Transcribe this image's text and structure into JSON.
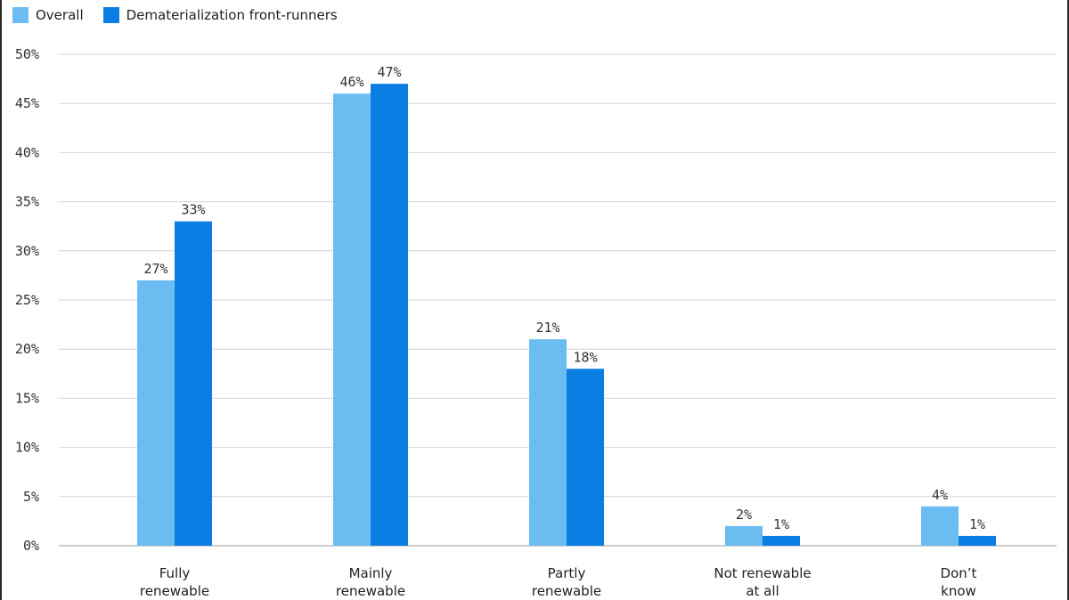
{
  "chart_data": {
    "type": "bar",
    "categories": [
      [
        "Fully",
        "renewable"
      ],
      [
        "Mainly",
        "renewable"
      ],
      [
        "Partly",
        "renewable"
      ],
      [
        "Not renewable",
        "at all"
      ],
      [
        "Don’t",
        "know"
      ]
    ],
    "series": [
      {
        "name": "Overall",
        "color": "#6bbcf0",
        "values": [
          27,
          46,
          21,
          2,
          4
        ]
      },
      {
        "name": "Dematerialization front-runners",
        "color": "#0a7ee3",
        "values": [
          33,
          47,
          18,
          1,
          1
        ]
      }
    ],
    "data_labels": [
      [
        "27%",
        "46%",
        "21%",
        "2%",
        "4%"
      ],
      [
        "33%",
        "47%",
        "18%",
        "1%",
        "1%"
      ]
    ],
    "yticks": [
      "0%",
      "5%",
      "10%",
      "15%",
      "20%",
      "25%",
      "30%",
      "35%",
      "40%",
      "45%",
      "50%"
    ],
    "ylim": [
      0,
      50
    ],
    "grid": true,
    "legend_position": "top-left",
    "title": "",
    "xlabel": "",
    "ylabel": ""
  }
}
